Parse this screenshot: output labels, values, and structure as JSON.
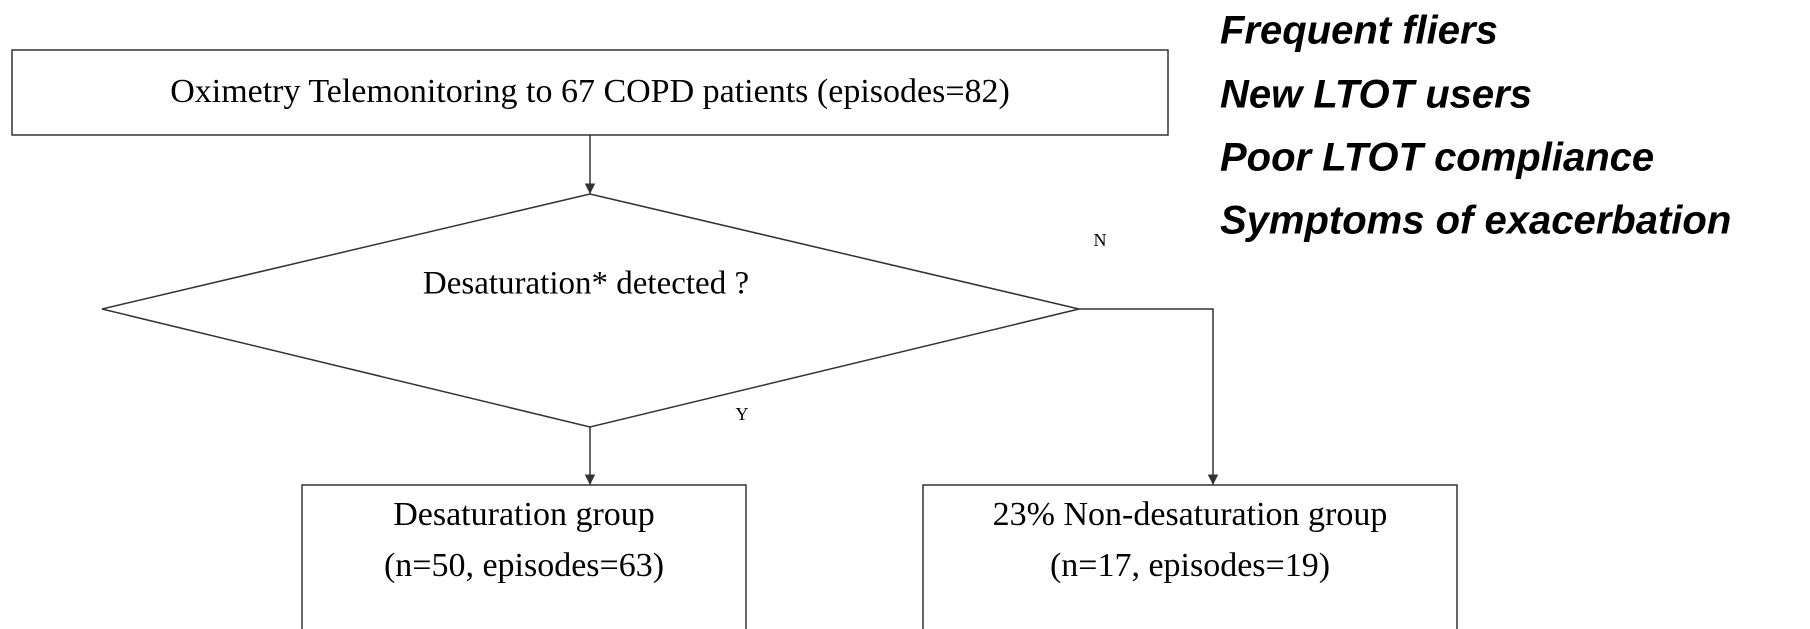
{
  "nodes": [
    {
      "label": "Oximetry Telemonitoring to 67 COPD patients (episodes=82)"
    },
    {
      "label": "Desaturation* detected ?"
    },
    {
      "lines": [
        "Desaturation group",
        "(n=50, episodes=63)"
      ]
    },
    {
      "lines": [
        "23% Non-desaturation group",
        "(n=17, episodes=19)"
      ]
    }
  ],
  "edges": [
    {
      "label": "Y"
    },
    {
      "label": "N"
    }
  ],
  "notes": [
    "Frequent fliers",
    "New LTOT users",
    "Poor LTOT compliance",
    "Symptoms of exacerbation"
  ]
}
